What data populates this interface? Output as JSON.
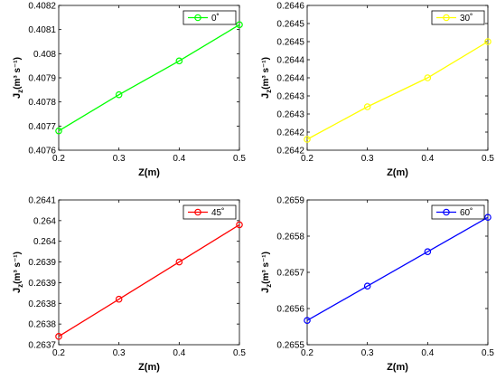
{
  "figure": {
    "background": "#ffffff"
  },
  "chart_data": [
    {
      "type": "line",
      "x": [
        0.2,
        0.3,
        0.4,
        0.5
      ],
      "series": [
        {
          "name": "0˚",
          "values": [
            0.40768,
            0.40783,
            0.40797,
            0.40812
          ],
          "color": "#00ff00",
          "marker": "circle"
        }
      ],
      "xlabel": "Z(m)",
      "ylabel_main": "J",
      "ylabel_sub": "z",
      "ylabel_unit": "(m³ s⁻¹)",
      "xlim": [
        0.2,
        0.5
      ],
      "ylim": [
        0.4076,
        0.4082
      ],
      "xticks": [
        0.2,
        0.3,
        0.4,
        0.5
      ],
      "xticklabels": [
        "0.2",
        "0.3",
        "0.4",
        "0.5"
      ],
      "yticks": [
        0.4076,
        0.4077,
        0.4078,
        0.4079,
        0.408,
        0.4081,
        0.4082
      ],
      "yticklabels": [
        "0.4076",
        "0.4077",
        "0.4078",
        "0.4079",
        "0.408",
        "0.4081",
        "0.4082"
      ],
      "grid": false,
      "legend": "top-right"
    },
    {
      "type": "line",
      "x": [
        0.2,
        0.3,
        0.4,
        0.5
      ],
      "series": [
        {
          "name": "30˚",
          "values": [
            0.26423,
            0.26432,
            0.2644,
            0.2645
          ],
          "color": "#ffff00",
          "marker": "circle"
        }
      ],
      "xlabel": "Z(m)",
      "ylabel_main": "J",
      "ylabel_sub": "z",
      "ylabel_unit": "(m³ s⁻¹)",
      "xlim": [
        0.2,
        0.5
      ],
      "ylim": [
        0.2642,
        0.2646
      ],
      "xticks": [
        0.2,
        0.3,
        0.4,
        0.5
      ],
      "xticklabels": [
        "0.2",
        "0.3",
        "0.4",
        "0.5"
      ],
      "yticks": [
        0.2642,
        0.26425,
        0.2643,
        0.26435,
        0.2644,
        0.26445,
        0.2645,
        0.26455,
        0.2646
      ],
      "yticklabels": [
        "0.2642",
        "0.2642",
        "0.2643",
        "0.2643",
        "0.2644",
        "0.2644",
        "0.2645",
        "0.2645",
        "0.2646"
      ],
      "grid": false,
      "legend": "top-right"
    },
    {
      "type": "line",
      "x": [
        0.2,
        0.3,
        0.4,
        0.5
      ],
      "series": [
        {
          "name": "45˚",
          "values": [
            0.26372,
            0.26381,
            0.2639,
            0.26399
          ],
          "color": "#ff0000",
          "marker": "circle"
        }
      ],
      "xlabel": "Z(m)",
      "ylabel_main": "J",
      "ylabel_sub": "z",
      "ylabel_unit": "(m³ s⁻¹)",
      "xlim": [
        0.2,
        0.5
      ],
      "ylim": [
        0.2637,
        0.26405
      ],
      "xticks": [
        0.2,
        0.3,
        0.4,
        0.5
      ],
      "xticklabels": [
        "0.2",
        "0.3",
        "0.4",
        "0.5"
      ],
      "yticks": [
        0.2637,
        0.26375,
        0.2638,
        0.26385,
        0.2639,
        0.26395,
        0.264,
        0.26405
      ],
      "yticklabels": [
        "0.2637",
        "0.2638",
        "0.2638",
        "0.2639",
        "0.2639",
        "0.264",
        "0.264",
        "0.2641"
      ],
      "grid": false,
      "legend": "top-right"
    },
    {
      "type": "line",
      "x": [
        0.2,
        0.3,
        0.4,
        0.5
      ],
      "series": [
        {
          "name": "60˚",
          "values": [
            0.265567,
            0.265662,
            0.265757,
            0.265852
          ],
          "color": "#0000ff",
          "marker": "circle"
        }
      ],
      "xlabel": "Z(m)",
      "ylabel_main": "J",
      "ylabel_sub": "z",
      "ylabel_unit": "(m³ s⁻¹)",
      "xlim": [
        0.2,
        0.5
      ],
      "ylim": [
        0.2655,
        0.2659
      ],
      "xticks": [
        0.2,
        0.3,
        0.4,
        0.5
      ],
      "xticklabels": [
        "0.2",
        "0.3",
        "0.4",
        "0.5"
      ],
      "yticks": [
        0.2655,
        0.2656,
        0.2657,
        0.2658,
        0.2659
      ],
      "yticklabels": [
        "0.2655",
        "0.2656",
        "0.2657",
        "0.2658",
        "0.2659"
      ],
      "grid": false,
      "legend": "top-right"
    }
  ]
}
